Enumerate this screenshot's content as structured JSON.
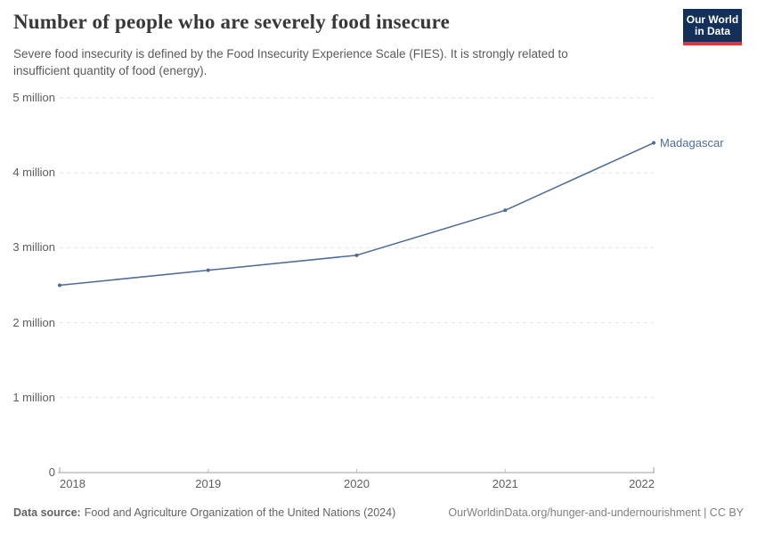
{
  "header": {
    "title": "Number of people who are severely food insecure",
    "subtitle_lines": [
      "Severe food insecurity is defined by the Food Insecurity Experience Scale (FIES). It is strongly related to",
      "insufficient quantity of food (energy)."
    ],
    "logo": {
      "line1": "Our World",
      "line2": "in Data",
      "bg_color": "#12305a",
      "accent_color": "#d93a34"
    }
  },
  "chart_data": {
    "type": "line",
    "title": "Number of people who are severely food insecure",
    "x": [
      2018,
      2019,
      2020,
      2021,
      2022
    ],
    "series": [
      {
        "name": "Madagascar",
        "color": "#4c6a9c",
        "values": [
          2500000,
          2700000,
          2900000,
          3500000,
          4400000
        ]
      }
    ],
    "ylim": [
      0,
      5000000
    ],
    "ytick_labels": [
      "0",
      "1 million",
      "2 million",
      "3 million",
      "4 million",
      "5 million"
    ],
    "xtick_labels": [
      "2018",
      "2019",
      "2020",
      "2021",
      "2022"
    ],
    "grid": "horizontal-dashed",
    "legend": "series-label-at-line-end"
  },
  "footer": {
    "datasource_label": "Data source:",
    "datasource_text": "Food and Agriculture Organization of the United Nations (2024)",
    "right_text": "OurWorldinData.org/hunger-and-undernourishment | CC BY"
  }
}
